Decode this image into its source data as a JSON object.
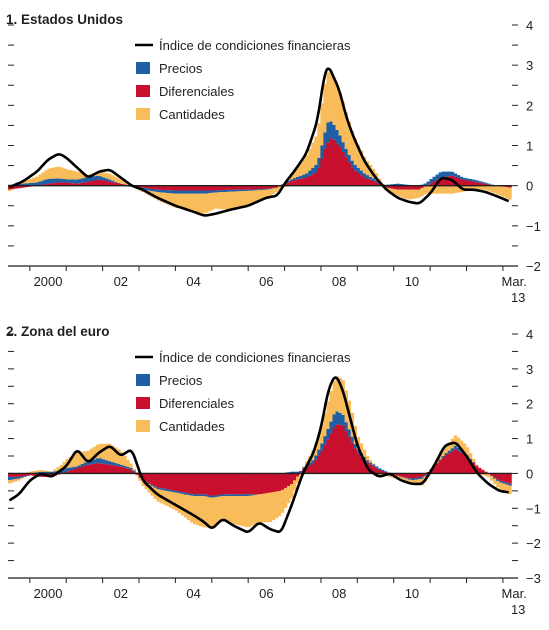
{
  "colors": {
    "precios": "#1f5fa6",
    "diferenciales": "#c8102e",
    "cantidades": "#f9bc5a",
    "indice": "#000000"
  },
  "chart_data": [
    {
      "type": "bar",
      "title": "1. Estados Unidos",
      "xlabel": "",
      "ylabel": "",
      "ylim": [
        -2,
        4
      ],
      "yticks": [
        -2,
        -1,
        0,
        1,
        2,
        3,
        4
      ],
      "xlim": [
        1999.4,
        2013.25
      ],
      "xticks": [
        {
          "x": 2000,
          "label": "2000"
        },
        {
          "x": 2002,
          "label": "02"
        },
        {
          "x": 2004,
          "label": "04"
        },
        {
          "x": 2006,
          "label": "06"
        },
        {
          "x": 2008,
          "label": "08"
        },
        {
          "x": 2010,
          "label": "10"
        }
      ],
      "end_label": {
        "x": 2013.2,
        "line1": "Mar.",
        "line2": "13"
      },
      "legend": {
        "placement": "top-center",
        "entries": [
          {
            "key": "indice",
            "label": "Índice de condiciones financieras"
          },
          {
            "key": "precios",
            "label": "Precios"
          },
          {
            "key": "diferenciales",
            "label": "Diferenciales"
          },
          {
            "key": "cantidades",
            "label": "Cantidades"
          }
        ]
      },
      "series": {
        "t": [
          1999.4,
          1999.8,
          2000.2,
          2000.5,
          2000.8,
          2001.0,
          2001.3,
          2001.6,
          2001.9,
          2002.2,
          2002.5,
          2002.8,
          2003.1,
          2003.5,
          2004.0,
          2004.5,
          2004.8,
          2005.1,
          2005.5,
          2006.0,
          2006.5,
          2006.8,
          2007.0,
          2007.3,
          2007.6,
          2007.9,
          2008.0,
          2008.1,
          2008.2,
          2008.3,
          2008.5,
          2008.7,
          2008.9,
          2009.2,
          2009.5,
          2009.8,
          2010.1,
          2010.4,
          2010.7,
          2011.0,
          2011.3,
          2011.6,
          2011.9,
          2012.2,
          2012.5,
          2012.8,
          2013.2
        ],
        "precios": [
          0.02,
          0.05,
          0.08,
          0.12,
          0.1,
          0.08,
          0.1,
          0.12,
          0.1,
          0.05,
          0.0,
          -0.03,
          -0.05,
          -0.06,
          -0.08,
          -0.08,
          -0.08,
          -0.05,
          -0.05,
          -0.03,
          -0.02,
          0.0,
          0.02,
          0.05,
          0.1,
          0.2,
          0.3,
          0.4,
          0.5,
          0.4,
          0.3,
          0.2,
          0.15,
          0.1,
          0.05,
          0.02,
          0.05,
          0.02,
          0.0,
          0.1,
          0.15,
          0.1,
          0.05,
          0.05,
          0.03,
          0.0,
          0.0
        ],
        "diferenciales": [
          -0.1,
          -0.05,
          0.0,
          0.05,
          0.08,
          0.08,
          0.05,
          0.1,
          0.15,
          0.1,
          0.05,
          0.0,
          -0.05,
          -0.1,
          -0.12,
          -0.12,
          -0.12,
          -0.12,
          -0.1,
          -0.1,
          -0.08,
          -0.05,
          0.05,
          0.15,
          0.2,
          0.35,
          0.6,
          0.9,
          1.1,
          1.2,
          1.0,
          0.7,
          0.4,
          0.2,
          0.1,
          -0.05,
          -0.1,
          -0.1,
          -0.1,
          0.05,
          0.2,
          0.25,
          0.15,
          0.1,
          0.05,
          0.0,
          -0.05
        ],
        "cantidades": [
          -0.05,
          0.05,
          0.15,
          0.25,
          0.3,
          0.25,
          0.2,
          0.05,
          0.1,
          0.15,
          0.1,
          0.0,
          -0.05,
          -0.2,
          -0.35,
          -0.45,
          -0.5,
          -0.4,
          -0.45,
          -0.4,
          -0.2,
          -0.1,
          -0.05,
          0.2,
          0.45,
          0.75,
          1.0,
          1.2,
          1.25,
          1.2,
          1.1,
          0.9,
          0.7,
          0.4,
          0.2,
          -0.1,
          -0.15,
          -0.25,
          -0.2,
          -0.2,
          -0.2,
          -0.2,
          -0.15,
          -0.1,
          -0.1,
          -0.2,
          -0.3
        ],
        "indice": [
          -0.05,
          0.1,
          0.35,
          0.65,
          0.8,
          0.7,
          0.45,
          0.2,
          0.35,
          0.4,
          0.2,
          0.0,
          -0.1,
          -0.3,
          -0.5,
          -0.65,
          -0.75,
          -0.7,
          -0.6,
          -0.5,
          -0.3,
          -0.25,
          0.05,
          0.4,
          0.8,
          1.6,
          2.2,
          2.8,
          3.0,
          2.8,
          2.4,
          1.7,
          1.2,
          0.6,
          0.2,
          -0.1,
          -0.3,
          -0.4,
          -0.45,
          -0.2,
          0.2,
          0.15,
          -0.1,
          -0.1,
          -0.15,
          -0.25,
          -0.4
        ]
      }
    },
    {
      "type": "bar",
      "title": "2. Zona del euro",
      "xlabel": "",
      "ylabel": "",
      "ylim": [
        -3,
        4
      ],
      "yticks": [
        -3,
        -2,
        -1,
        0,
        1,
        2,
        3,
        4
      ],
      "xlim": [
        1999.4,
        2013.25
      ],
      "xticks": [
        {
          "x": 2000,
          "label": "2000"
        },
        {
          "x": 2002,
          "label": "02"
        },
        {
          "x": 2004,
          "label": "04"
        },
        {
          "x": 2006,
          "label": "06"
        },
        {
          "x": 2008,
          "label": "08"
        },
        {
          "x": 2010,
          "label": "10"
        }
      ],
      "end_label": {
        "x": 2013.2,
        "line1": "Mar.",
        "line2": "13"
      },
      "legend": {
        "placement": "top-center",
        "entries": [
          {
            "key": "indice",
            "label": "Índice de condiciones financieras"
          },
          {
            "key": "precios",
            "label": "Precios"
          },
          {
            "key": "diferenciales",
            "label": "Diferenciales"
          },
          {
            "key": "cantidades",
            "label": "Cantidades"
          }
        ]
      },
      "series": {
        "t": [
          1999.4,
          1999.7,
          2000.0,
          2000.3,
          2000.6,
          2001.0,
          2001.3,
          2001.6,
          2001.9,
          2002.2,
          2002.5,
          2002.8,
          2003.1,
          2003.5,
          2004.0,
          2004.5,
          2004.8,
          2005.0,
          2005.3,
          2005.6,
          2006.0,
          2006.3,
          2006.6,
          2006.9,
          2007.2,
          2007.5,
          2007.8,
          2008.0,
          2008.2,
          2008.4,
          2008.6,
          2008.8,
          2009.0,
          2009.3,
          2009.6,
          2009.9,
          2010.2,
          2010.5,
          2010.8,
          2011.1,
          2011.4,
          2011.7,
          2012.0,
          2012.3,
          2012.6,
          2012.9,
          2013.2
        ],
        "precios": [
          -0.1,
          -0.05,
          0.0,
          0.05,
          0.05,
          0.1,
          0.05,
          0.1,
          0.15,
          0.1,
          0.05,
          0.05,
          0.0,
          -0.05,
          -0.05,
          -0.05,
          -0.05,
          -0.05,
          -0.05,
          -0.05,
          -0.05,
          0.0,
          0.0,
          0.0,
          0.05,
          0.05,
          0.1,
          0.2,
          0.3,
          0.4,
          0.3,
          0.2,
          0.1,
          0.05,
          0.05,
          0.0,
          0.0,
          -0.05,
          -0.05,
          0.0,
          0.05,
          0.1,
          0.05,
          0.0,
          0.0,
          -0.05,
          -0.05
        ],
        "diferenciales": [
          -0.1,
          -0.1,
          -0.05,
          -0.1,
          -0.1,
          0.05,
          0.15,
          0.25,
          0.3,
          0.25,
          0.2,
          0.1,
          -0.2,
          -0.4,
          -0.5,
          -0.6,
          -0.6,
          -0.65,
          -0.6,
          -0.6,
          -0.6,
          -0.6,
          -0.55,
          -0.5,
          -0.3,
          0.1,
          0.3,
          0.6,
          1.0,
          1.4,
          1.4,
          1.0,
          0.6,
          0.3,
          0.1,
          0.0,
          -0.1,
          -0.15,
          -0.1,
          0.2,
          0.5,
          0.7,
          0.5,
          0.2,
          0.0,
          -0.2,
          -0.3
        ],
        "cantidades": [
          -0.1,
          -0.05,
          0.05,
          0.05,
          0.0,
          0.25,
          0.4,
          0.3,
          0.4,
          0.5,
          0.4,
          0.1,
          -0.15,
          -0.35,
          -0.5,
          -0.8,
          -0.9,
          -0.85,
          -0.7,
          -0.8,
          -0.9,
          -0.8,
          -0.85,
          -0.7,
          -0.4,
          0.0,
          0.3,
          0.5,
          0.8,
          1.0,
          1.0,
          0.8,
          0.4,
          0.1,
          -0.05,
          -0.1,
          -0.1,
          -0.1,
          -0.2,
          0.05,
          0.2,
          0.3,
          0.25,
          0.0,
          -0.1,
          -0.2,
          -0.25
        ],
        "indice": [
          -0.8,
          -0.6,
          -0.2,
          0.0,
          -0.1,
          0.2,
          0.7,
          0.3,
          0.6,
          0.8,
          0.5,
          0.7,
          -0.2,
          -0.6,
          -0.9,
          -1.2,
          -1.4,
          -1.6,
          -1.3,
          -1.5,
          -1.7,
          -1.4,
          -1.6,
          -1.7,
          -0.9,
          0.0,
          0.6,
          1.3,
          2.4,
          2.85,
          2.4,
          1.6,
          0.8,
          0.1,
          -0.1,
          0.0,
          -0.2,
          -0.3,
          -0.3,
          0.2,
          0.8,
          0.9,
          0.5,
          0.0,
          -0.3,
          -0.5,
          -0.55
        ]
      }
    }
  ]
}
